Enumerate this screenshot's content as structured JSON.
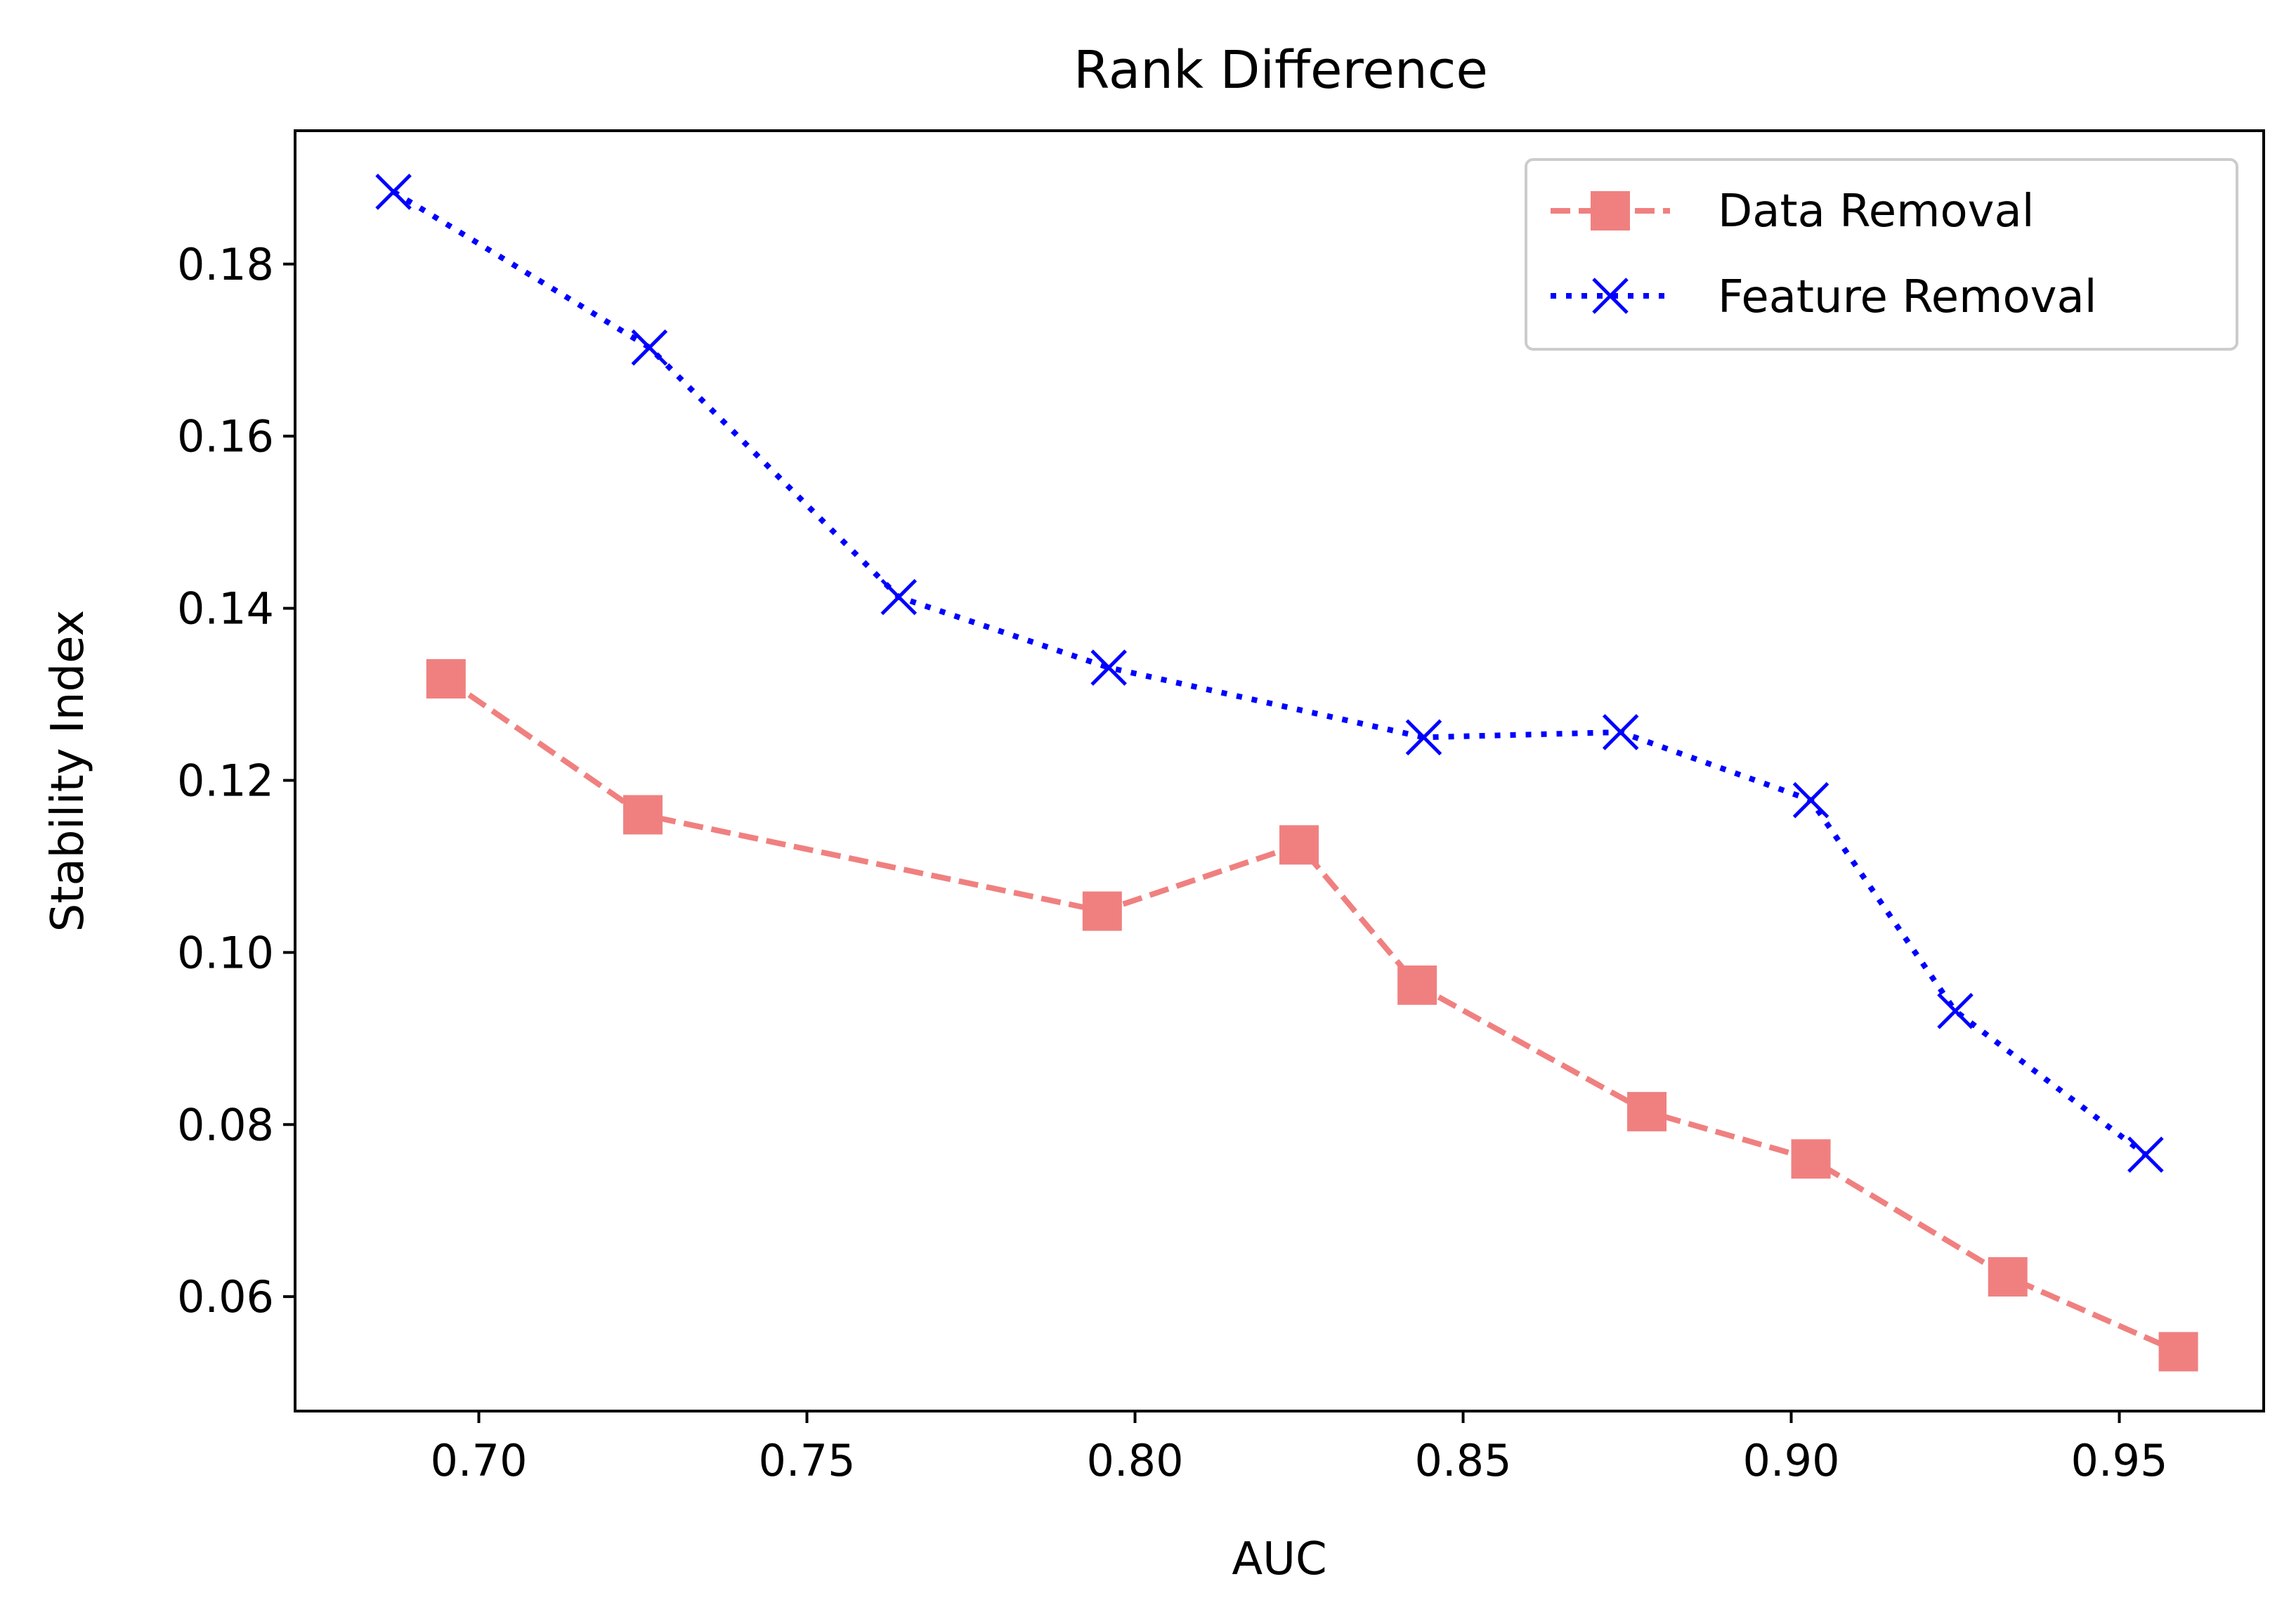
{
  "chart_data": {
    "type": "line",
    "title": "Rank Difference",
    "xlabel": "AUC",
    "ylabel": "Stability Index",
    "xlim": [
      0.672,
      0.972
    ],
    "ylim": [
      0.0467,
      0.1955
    ],
    "xticks": [
      0.7,
      0.75,
      0.8,
      0.85,
      0.9,
      0.95
    ],
    "xtick_labels": [
      "0.70",
      "0.75",
      "0.80",
      "0.85",
      "0.90",
      "0.95"
    ],
    "yticks": [
      0.06,
      0.08,
      0.1,
      0.12,
      0.14,
      0.16,
      0.18
    ],
    "ytick_labels": [
      "0.06",
      "0.08",
      "0.10",
      "0.12",
      "0.14",
      "0.16",
      "0.18"
    ],
    "grid": false,
    "legend": "top-right",
    "series": [
      {
        "name": "Data Removal",
        "color": "#f08080",
        "linestyle": "dashed",
        "marker": "square",
        "x": [
          0.695,
          0.725,
          0.795,
          0.825,
          0.843,
          0.878,
          0.903,
          0.933,
          0.959
        ],
        "y": [
          0.1318,
          0.116,
          0.1048,
          0.1125,
          0.0962,
          0.0815,
          0.076,
          0.0623,
          0.0536
        ]
      },
      {
        "name": "Feature Removal",
        "color": "#0000ff",
        "linestyle": "dotted",
        "marker": "x",
        "x": [
          0.687,
          0.726,
          0.764,
          0.796,
          0.844,
          0.874,
          0.903,
          0.925,
          0.954
        ],
        "y": [
          0.1884,
          0.1703,
          0.1413,
          0.1331,
          0.125,
          0.1256,
          0.1177,
          0.0932,
          0.0765
        ]
      }
    ]
  }
}
